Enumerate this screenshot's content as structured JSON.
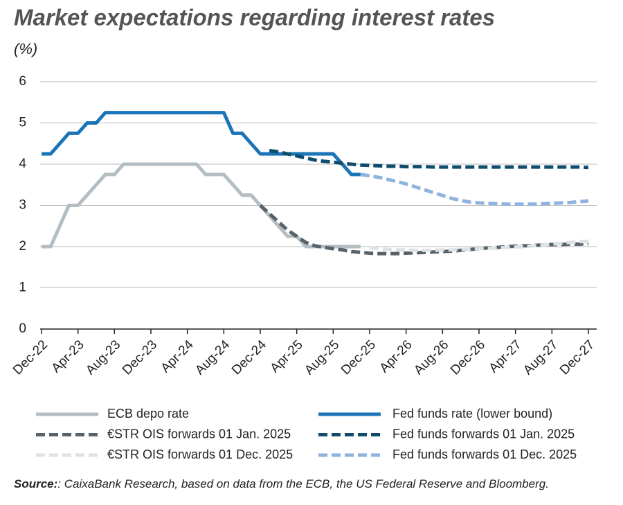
{
  "chart_data": {
    "type": "line",
    "title": "Market expectations regarding interest rates",
    "subtitle": "(%)",
    "source_label": "Source:",
    "source_text": ": CaixaBank Research, based on data from the ECB, the US Federal Reserve and Bloomberg.",
    "categories": [
      "Dec-22",
      null,
      null,
      null,
      "Apr-23",
      null,
      null,
      null,
      "Aug-23",
      null,
      null,
      null,
      "Dec-23",
      null,
      null,
      null,
      "Apr-24",
      null,
      null,
      null,
      "Aug-24",
      null,
      null,
      null,
      "Dec-24",
      null,
      null,
      null,
      "Apr-25",
      null,
      null,
      null,
      "Aug-25",
      null,
      null,
      null,
      "Dec-25",
      null,
      null,
      null,
      "Apr-26",
      null,
      null,
      null,
      "Aug-26",
      null,
      null,
      null,
      "Dec-26",
      null,
      null,
      null,
      "Apr-27",
      null,
      null,
      null,
      "Aug-27",
      null,
      null,
      null,
      "Dec-27"
    ],
    "ylim": [
      0,
      6
    ],
    "yticks": [
      0,
      1,
      2,
      3,
      4,
      5,
      6
    ],
    "grid": true,
    "series": [
      {
        "name": "ECB depo rate",
        "color": "#b3bdc2",
        "dashed": false,
        "values": [
          2,
          2,
          2.5,
          3,
          3,
          3.25,
          3.5,
          3.75,
          3.75,
          4,
          4,
          4,
          4,
          4,
          4,
          4,
          4,
          4,
          3.75,
          3.75,
          3.75,
          3.5,
          3.25,
          3.25,
          3,
          2.75,
          2.5,
          2.25,
          2.25,
          2,
          2,
          2,
          2,
          2,
          2,
          2,
          null,
          null,
          null,
          null,
          null,
          null,
          null,
          null,
          null,
          null,
          null,
          null,
          null,
          null,
          null,
          null,
          null,
          null,
          null,
          null,
          null,
          null,
          null,
          null,
          null
        ]
      },
      {
        "name": "Fed funds rate (lower bound)",
        "color": "#1a74b8",
        "dashed": false,
        "values": [
          4.25,
          4.25,
          4.5,
          4.75,
          4.75,
          5,
          5,
          5.25,
          5.25,
          5.25,
          5.25,
          5.25,
          5.25,
          5.25,
          5.25,
          5.25,
          5.25,
          5.25,
          5.25,
          5.25,
          5.25,
          4.75,
          4.75,
          4.5,
          4.25,
          4.25,
          4.25,
          4.25,
          4.25,
          4.25,
          4.25,
          4.25,
          4.25,
          4,
          3.75,
          3.75,
          null,
          null,
          null,
          null,
          null,
          null,
          null,
          null,
          null,
          null,
          null,
          null,
          null,
          null,
          null,
          null,
          null,
          null,
          null,
          null,
          null,
          null,
          null,
          null,
          null
        ]
      },
      {
        "name": "€STR OIS forwards 01 Jan. 2025",
        "color": "#57626a",
        "dashed": true,
        "values": [
          null,
          null,
          null,
          null,
          null,
          null,
          null,
          null,
          null,
          null,
          null,
          null,
          null,
          null,
          null,
          null,
          null,
          null,
          null,
          null,
          null,
          null,
          null,
          null,
          3,
          2.8,
          2.6,
          2.4,
          2.25,
          2.1,
          2.02,
          1.98,
          1.95,
          1.92,
          1.88,
          1.86,
          1.84,
          1.83,
          1.83,
          1.83,
          1.84,
          1.85,
          1.86,
          1.87,
          1.88,
          1.89,
          1.91,
          1.93,
          1.95,
          1.97,
          1.98,
          2,
          2.01,
          2.02,
          2.03,
          2.04,
          2.05,
          2.05,
          2.06,
          2.06,
          2.07
        ]
      },
      {
        "name": "Fed funds forwards 01 Jan. 2025",
        "color": "#0f4c6e",
        "dashed": true,
        "values": [
          null,
          null,
          null,
          null,
          null,
          null,
          null,
          null,
          null,
          null,
          null,
          null,
          null,
          null,
          null,
          null,
          null,
          null,
          null,
          null,
          null,
          null,
          null,
          null,
          null,
          4.33,
          4.3,
          4.25,
          4.2,
          4.15,
          4.1,
          4.07,
          4.05,
          4.02,
          4,
          3.98,
          3.97,
          3.96,
          3.95,
          3.95,
          3.94,
          3.94,
          3.94,
          3.93,
          3.93,
          3.93,
          3.93,
          3.93,
          3.93,
          3.93,
          3.93,
          3.93,
          3.93,
          3.93,
          3.93,
          3.93,
          3.93,
          3.93,
          3.93,
          3.93,
          3.92
        ]
      },
      {
        "name": "€STR OIS forwards 01 Dec. 2025",
        "color": "#dde2e5",
        "dashed": true,
        "values": [
          null,
          null,
          null,
          null,
          null,
          null,
          null,
          null,
          null,
          null,
          null,
          null,
          null,
          null,
          null,
          null,
          null,
          null,
          null,
          null,
          null,
          null,
          null,
          null,
          null,
          null,
          null,
          null,
          null,
          null,
          null,
          null,
          null,
          null,
          null,
          null,
          1.98,
          1.95,
          1.93,
          1.92,
          1.92,
          1.91,
          1.91,
          1.91,
          1.92,
          1.92,
          1.93,
          1.94,
          1.95,
          1.96,
          1.97,
          1.98,
          1.99,
          2,
          2.02,
          2.04,
          2.06,
          2.08,
          2.1,
          2.12,
          2.13
        ]
      },
      {
        "name": "Fed funds forwards 01 Dec. 2025",
        "color": "#8fb2de",
        "dashed": true,
        "values": [
          null,
          null,
          null,
          null,
          null,
          null,
          null,
          null,
          null,
          null,
          null,
          null,
          null,
          null,
          null,
          null,
          null,
          null,
          null,
          null,
          null,
          null,
          null,
          null,
          null,
          null,
          null,
          null,
          null,
          null,
          null,
          null,
          null,
          null,
          null,
          3.75,
          3.72,
          3.68,
          3.63,
          3.58,
          3.52,
          3.45,
          3.38,
          3.31,
          3.24,
          3.17,
          3.12,
          3.08,
          3.06,
          3.05,
          3.04,
          3.03,
          3.03,
          3.03,
          3.03,
          3.04,
          3.05,
          3.06,
          3.07,
          3.09,
          3.11
        ]
      }
    ]
  }
}
